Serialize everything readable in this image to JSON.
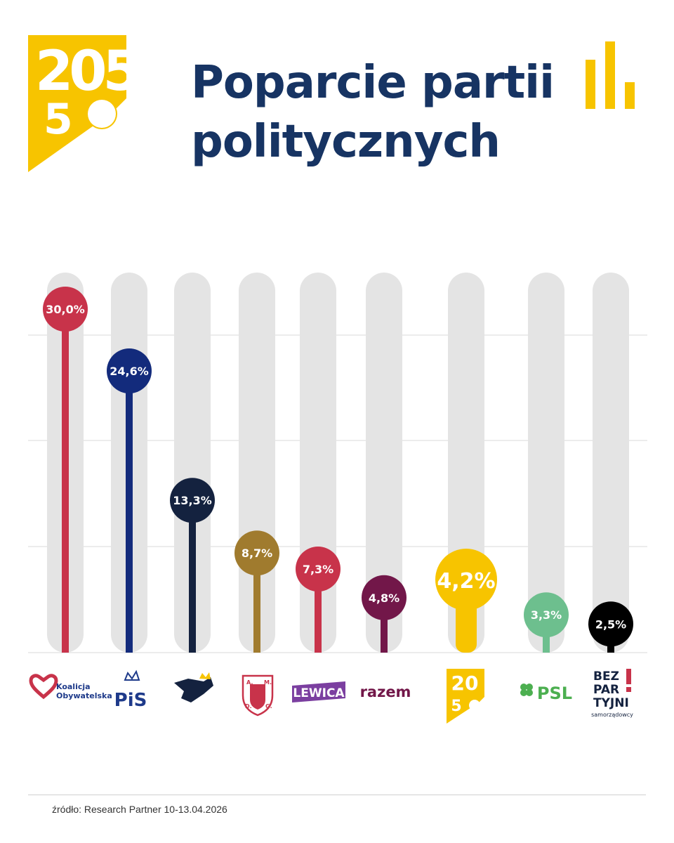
{
  "header": {
    "title_lines": [
      "Poparcie partii",
      "politycznych"
    ],
    "brand_logo": "polska-2050-logo",
    "brand_logo_text": "2050",
    "decor_icon": "bar-chart-icon"
  },
  "colors": {
    "title": "#173463",
    "brand_yellow": "#F7C400",
    "track": "#E4E4E4",
    "gridline": "#D8D8D8"
  },
  "chart_data": {
    "type": "bar",
    "categories": [
      "Koalicja Obywatelska",
      "PiS",
      "Konfederacja",
      "Konfederacja Korony Polskiej",
      "Lewica",
      "Razem",
      "Polska 2050",
      "PSL",
      "Bezpartyjni Samorządowcy"
    ],
    "values": [
      30.0,
      24.6,
      13.3,
      8.7,
      7.3,
      4.8,
      4.2,
      3.3,
      2.5
    ],
    "labels": [
      "30,0%",
      "24,6%",
      "13,3%",
      "8,7%",
      "7,3%",
      "4,8%",
      "4,2%",
      "3,3%",
      "2,5%"
    ],
    "colors": [
      "#C8334A",
      "#132B7C",
      "#14223F",
      "#A07B2E",
      "#C8334A",
      "#721749",
      "#F7C400",
      "#6DBF8E",
      "#000000"
    ],
    "highlight_index": 6,
    "ylim": [
      0,
      35
    ],
    "gridlines": [
      0,
      10,
      20,
      30
    ],
    "grid": true,
    "title": "",
    "xlabel": "",
    "ylabel": ""
  },
  "party_logos": [
    {
      "icon": "heart-icon",
      "text": [
        "Koalicja",
        "Obywatelska"
      ]
    },
    {
      "icon": "eagle-crown-icon",
      "text": [
        "PiS"
      ]
    },
    {
      "icon": "konfederacja-eagle-icon",
      "text": []
    },
    {
      "icon": "shield-crest-icon",
      "text": [
        "A.",
        "M.",
        "D.",
        "G."
      ]
    },
    {
      "icon": "lewica-logo",
      "text": [
        "LEWICA"
      ]
    },
    {
      "icon": "razem-logo",
      "text": [
        "razem"
      ]
    },
    {
      "icon": "polska-2050-logo",
      "text": [
        "2050"
      ]
    },
    {
      "icon": "clover-icon",
      "text": [
        "PSL"
      ]
    },
    {
      "icon": "bezpartyjni-logo",
      "text": [
        "BEZ",
        "PAR",
        "TYJNI",
        "samorządowcy"
      ]
    }
  ],
  "source": "źródło: Research Partner 10-13.04.2026"
}
